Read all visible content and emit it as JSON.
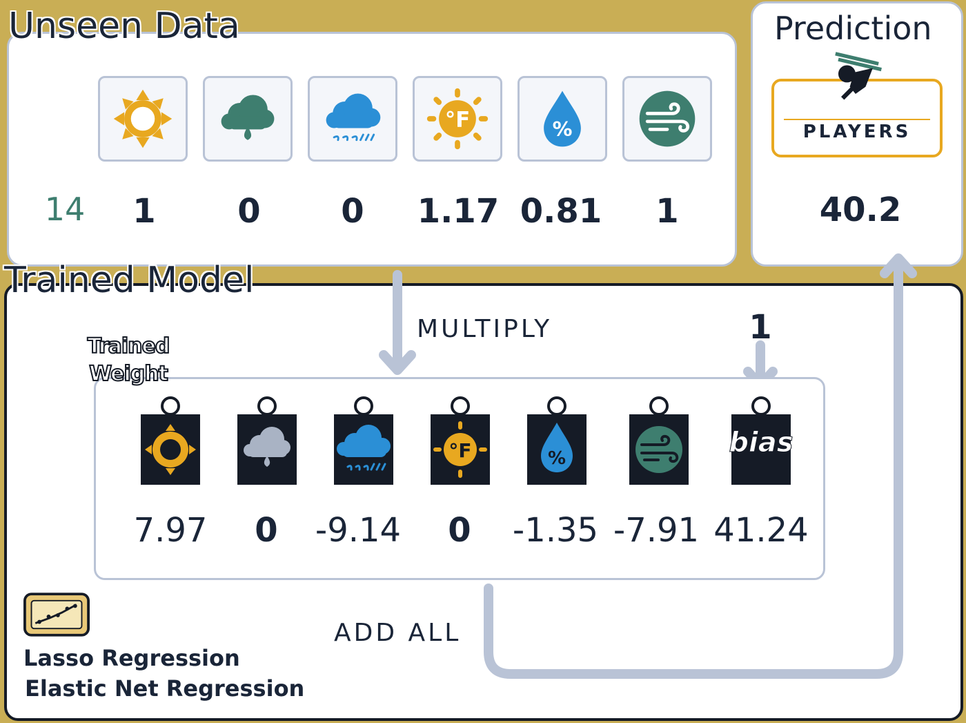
{
  "unseen_data": {
    "title": "Unseen Data",
    "row_label": "14",
    "features": [
      {
        "icon": "sun-icon",
        "value": "1"
      },
      {
        "icon": "overcast-cloud-icon",
        "value": "0"
      },
      {
        "icon": "rain-cloud-icon",
        "value": "0"
      },
      {
        "icon": "temperature-fahrenheit-icon",
        "value": "1.17"
      },
      {
        "icon": "humidity-drop-icon",
        "value": "0.81"
      },
      {
        "icon": "wind-icon",
        "value": "1"
      }
    ]
  },
  "prediction": {
    "title": "Prediction",
    "badge_label": "PLAYERS",
    "value": "40.2"
  },
  "trained_model": {
    "title": "Trained Model",
    "weights_label": "Trained Weight",
    "multiply_label": "MULTIPLY",
    "bias_input": "1",
    "add_label": "ADD ALL",
    "bias_text": "bias",
    "weights": [
      {
        "icon": "sun-icon",
        "value": "7.97"
      },
      {
        "icon": "overcast-cloud-icon",
        "value": "0"
      },
      {
        "icon": "rain-cloud-icon",
        "value": "-9.14"
      },
      {
        "icon": "temperature-fahrenheit-icon",
        "value": "0"
      },
      {
        "icon": "humidity-drop-icon",
        "value": "-1.35"
      },
      {
        "icon": "wind-icon",
        "value": "-7.91"
      },
      {
        "icon": "bias-icon",
        "value": "41.24"
      }
    ],
    "methods": [
      "Lasso Regression",
      "Elastic Net Regression"
    ]
  },
  "colors": {
    "background": "#c9ae55",
    "sun": "#e8a820",
    "overcast": "#3e7e6f",
    "rain": "#2b8fd6",
    "wind": "#3e7e6f",
    "panel_border": "#b9c3d6",
    "dark": "#151b26",
    "text": "#1a2538"
  }
}
